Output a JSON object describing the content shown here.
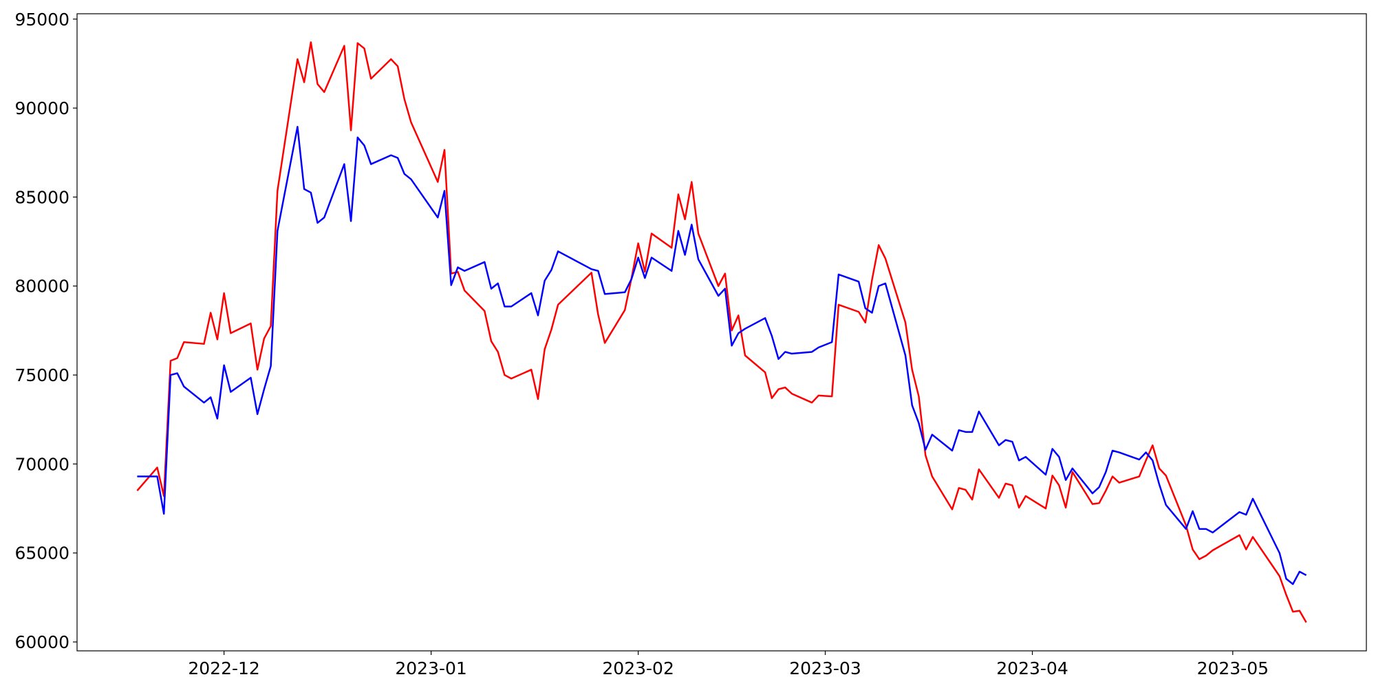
{
  "chart_data": {
    "type": "line",
    "x": [
      "2022-11-18",
      "2022-11-21",
      "2022-11-22",
      "2022-11-23",
      "2022-11-24",
      "2022-11-25",
      "2022-11-28",
      "2022-11-29",
      "2022-11-30",
      "2022-12-01",
      "2022-12-02",
      "2022-12-05",
      "2022-12-06",
      "2022-12-07",
      "2022-12-08",
      "2022-12-09",
      "2022-12-12",
      "2022-12-13",
      "2022-12-14",
      "2022-12-15",
      "2022-12-16",
      "2022-12-19",
      "2022-12-20",
      "2022-12-21",
      "2022-12-22",
      "2022-12-23",
      "2022-12-26",
      "2022-12-27",
      "2022-12-28",
      "2022-12-29",
      "2023-01-02",
      "2023-01-03",
      "2023-01-04",
      "2023-01-05",
      "2023-01-06",
      "2023-01-09",
      "2023-01-10",
      "2023-01-11",
      "2023-01-12",
      "2023-01-13",
      "2023-01-16",
      "2023-01-17",
      "2023-01-18",
      "2023-01-19",
      "2023-01-20",
      "2023-01-25",
      "2023-01-26",
      "2023-01-27",
      "2023-01-30",
      "2023-01-31",
      "2023-02-01",
      "2023-02-02",
      "2023-02-03",
      "2023-02-06",
      "2023-02-07",
      "2023-02-08",
      "2023-02-09",
      "2023-02-10",
      "2023-02-13",
      "2023-02-14",
      "2023-02-15",
      "2023-02-16",
      "2023-02-17",
      "2023-02-20",
      "2023-02-21",
      "2023-02-22",
      "2023-02-23",
      "2023-02-24",
      "2023-02-27",
      "2023-02-28",
      "2023-03-02",
      "2023-03-03",
      "2023-03-06",
      "2023-03-07",
      "2023-03-08",
      "2023-03-09",
      "2023-03-10",
      "2023-03-13",
      "2023-03-14",
      "2023-03-15",
      "2023-03-16",
      "2023-03-17",
      "2023-03-20",
      "2023-03-21",
      "2023-03-22",
      "2023-03-23",
      "2023-03-24",
      "2023-03-27",
      "2023-03-28",
      "2023-03-29",
      "2023-03-30",
      "2023-03-31",
      "2023-04-03",
      "2023-04-04",
      "2023-04-05",
      "2023-04-06",
      "2023-04-07",
      "2023-04-10",
      "2023-04-11",
      "2023-04-12",
      "2023-04-13",
      "2023-04-14",
      "2023-04-17",
      "2023-04-18",
      "2023-04-19",
      "2023-04-20",
      "2023-04-21",
      "2023-04-24",
      "2023-04-25",
      "2023-04-26",
      "2023-04-27",
      "2023-04-28",
      "2023-05-02",
      "2023-05-03",
      "2023-05-04",
      "2023-05-08",
      "2023-05-09",
      "2023-05-10",
      "2023-05-11",
      "2023-05-12"
    ],
    "series": [
      {
        "color": "red",
        "values": [
          68500,
          69800,
          68200,
          75800,
          75950,
          76850,
          76750,
          78500,
          77000,
          79600,
          77350,
          77900,
          75300,
          77050,
          77750,
          85350,
          92750,
          91450,
          93700,
          91350,
          90900,
          93500,
          88750,
          93650,
          93350,
          91650,
          92750,
          92350,
          90500,
          89200,
          85850,
          87650,
          80700,
          80800,
          79750,
          78600,
          76900,
          76300,
          75000,
          74800,
          75300,
          73650,
          76450,
          77550,
          78950,
          80750,
          78400,
          76800,
          78650,
          80450,
          82400,
          80800,
          82950,
          82150,
          85150,
          83750,
          85850,
          82950,
          80000,
          80700,
          77500,
          78350,
          76100,
          75150,
          73700,
          74200,
          74300,
          73950,
          73450,
          73850,
          73800,
          78950,
          78550,
          77950,
          80350,
          82300,
          81550,
          77950,
          75300,
          73800,
          70500,
          69300,
          67450,
          68650,
          68550,
          68000,
          69700,
          68100,
          68900,
          68800,
          67550,
          68200,
          67500,
          69350,
          68800,
          67550,
          69550,
          67750,
          67800,
          68500,
          69300,
          68950,
          69300,
          70200,
          71050,
          69750,
          69350,
          66550,
          65200,
          64650,
          64850,
          65150,
          66000,
          65200,
          65900,
          63700,
          62650,
          61700,
          61750,
          61100
        ]
      },
      {
        "color": "blue",
        "values": [
          69300,
          69300,
          67200,
          75000,
          75100,
          74350,
          73450,
          73750,
          72550,
          75550,
          74050,
          74850,
          72800,
          74200,
          75500,
          83100,
          88950,
          85450,
          85250,
          83550,
          83850,
          86850,
          83650,
          88350,
          87900,
          86850,
          87350,
          87200,
          86300,
          86000,
          83850,
          85350,
          80050,
          81050,
          80850,
          81350,
          79850,
          80150,
          78850,
          78850,
          79600,
          78350,
          80300,
          80900,
          81950,
          80950,
          80850,
          79550,
          79650,
          80400,
          81600,
          80450,
          81600,
          80850,
          83100,
          81750,
          83450,
          81500,
          79450,
          79850,
          76650,
          77350,
          77600,
          78200,
          77200,
          75900,
          76300,
          76200,
          76300,
          76550,
          76850,
          80650,
          80250,
          78750,
          78500,
          80000,
          80150,
          76100,
          73300,
          72300,
          70800,
          71650,
          70750,
          71900,
          71800,
          71800,
          72950,
          71050,
          71350,
          71250,
          70200,
          70400,
          69400,
          70850,
          70400,
          69100,
          69750,
          68350,
          68700,
          69550,
          70750,
          70650,
          70250,
          70650,
          70200,
          68850,
          67700,
          66350,
          67350,
          66350,
          66350,
          66150,
          67300,
          67150,
          68050,
          65000,
          63550,
          63250,
          63950,
          63750
        ]
      }
    ],
    "xlim": [
      "2022-11-09",
      "2023-05-21"
    ],
    "xticks": [
      {
        "value": "2022-12-01",
        "label": "2022-12"
      },
      {
        "value": "2023-01-01",
        "label": "2023-01"
      },
      {
        "value": "2023-02-01",
        "label": "2023-02"
      },
      {
        "value": "2023-03-01",
        "label": "2023-03"
      },
      {
        "value": "2023-04-01",
        "label": "2023-04"
      },
      {
        "value": "2023-05-01",
        "label": "2023-05"
      }
    ],
    "ylim": [
      59500,
      95300
    ],
    "yticks": [
      60000,
      65000,
      70000,
      75000,
      80000,
      85000,
      90000,
      95000
    ]
  }
}
